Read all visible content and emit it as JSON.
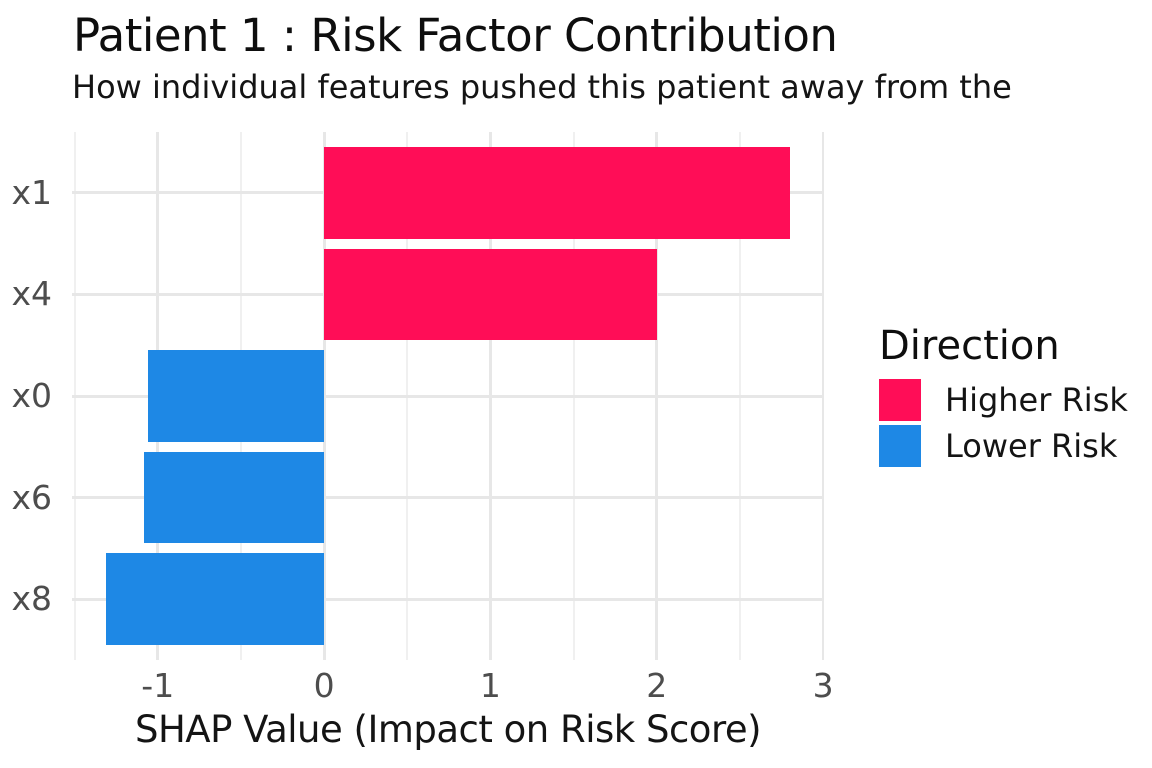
{
  "chart_data": {
    "type": "bar",
    "orientation": "horizontal",
    "title": "Patient 1 : Risk Factor Contribution",
    "subtitle": "How individual features pushed this patient away from the",
    "xlabel": "SHAP Value (Impact on Risk Score)",
    "ylabel": "",
    "categories": [
      "x1",
      "x4",
      "x0",
      "x6",
      "x8"
    ],
    "values": [
      2.8,
      2.0,
      -1.06,
      -1.08,
      -1.31
    ],
    "directions": [
      "Higher Risk",
      "Higher Risk",
      "Lower Risk",
      "Lower Risk",
      "Lower Risk"
    ],
    "xlim": [
      -1.5155,
      3.0055
    ],
    "x_major_ticks": [
      -1,
      0,
      1,
      2,
      3
    ],
    "x_minor_ticks": [
      -1.5,
      -0.5,
      0.5,
      1.5,
      2.5
    ],
    "grid": "on",
    "bar_width_fraction": 0.9,
    "legend": {
      "title": "Direction",
      "position": "right",
      "entries": [
        {
          "label": "Higher Risk",
          "color": "#FF0D57"
        },
        {
          "label": "Lower Risk",
          "color": "#1E88E5"
        }
      ]
    },
    "colors": {
      "higher_risk": "#FF0D57",
      "lower_risk": "#1E88E5",
      "grid_major": "#E7E7E7",
      "grid_minor": "#F0F0F0",
      "axis_text": "#4D4D4D",
      "title_text": "#0E0E0E",
      "background": "#FFFFFF"
    }
  }
}
